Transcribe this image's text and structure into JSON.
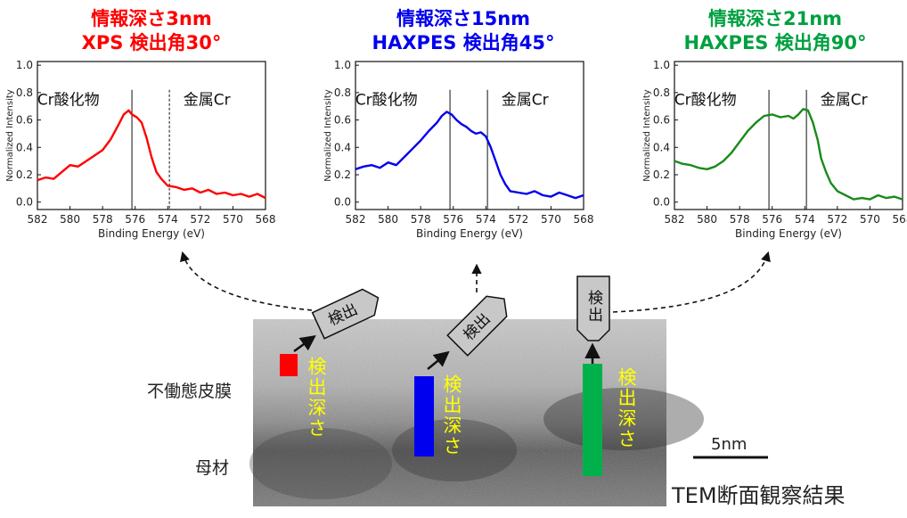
{
  "panels": [
    {
      "depth_line": "情報深さ3nm",
      "method_line": "XPS 検出角30°",
      "color": "#ff0000"
    },
    {
      "depth_line": "情報深さ15nm",
      "method_line": "HAXPES 検出角45°",
      "color": "#0000ee"
    },
    {
      "depth_line": "情報深さ21nm",
      "method_line": "HAXPES 検出角90°",
      "color": "#00a040"
    }
  ],
  "chart_data": [
    {
      "type": "line",
      "xlabel": "Binding Energy (eV)",
      "ylabel": "Normalized Intensity",
      "xlim": [
        582,
        568
      ],
      "ylim": [
        0,
        1.0
      ],
      "xticks": [
        "582",
        "580",
        "578",
        "576",
        "574",
        "572",
        "570",
        "568"
      ],
      "yticks": [
        "0.0",
        "0.2",
        "0.4",
        "0.6",
        "0.8",
        "1.0"
      ],
      "annotations": [
        "Cr酸化物",
        "金属Cr"
      ],
      "markers": [
        {
          "x": 576.2,
          "style": "solid"
        },
        {
          "x": 573.9,
          "style": "dashed"
        }
      ],
      "series": [
        {
          "color": "#ff0000",
          "x": [
            582,
            581.5,
            581,
            580.5,
            580,
            579.5,
            579,
            578.5,
            578,
            577.5,
            577,
            576.7,
            576.4,
            576.2,
            575.9,
            575.6,
            575.3,
            575,
            574.7,
            574.4,
            574,
            573.5,
            573,
            572.5,
            572,
            571.5,
            571,
            570.5,
            570,
            569.5,
            569,
            568.5,
            568
          ],
          "y": [
            0.16,
            0.18,
            0.17,
            0.22,
            0.27,
            0.26,
            0.3,
            0.34,
            0.38,
            0.46,
            0.57,
            0.64,
            0.67,
            0.64,
            0.62,
            0.58,
            0.47,
            0.33,
            0.22,
            0.17,
            0.12,
            0.11,
            0.09,
            0.1,
            0.07,
            0.09,
            0.06,
            0.07,
            0.05,
            0.06,
            0.04,
            0.06,
            0.03
          ]
        }
      ]
    },
    {
      "type": "line",
      "xlabel": "Binding Energy (eV)",
      "ylabel": "Normalized Intensity",
      "xlim": [
        582,
        568
      ],
      "ylim": [
        0,
        1.0
      ],
      "xticks": [
        "582",
        "580",
        "578",
        "576",
        "574",
        "572",
        "570",
        "568"
      ],
      "yticks": [
        "0.0",
        "0.2",
        "0.4",
        "0.6",
        "0.8",
        "1.0"
      ],
      "annotations": [
        "Cr酸化物",
        "金属Cr"
      ],
      "markers": [
        {
          "x": 576.2,
          "style": "solid"
        },
        {
          "x": 573.9,
          "style": "solid"
        }
      ],
      "series": [
        {
          "color": "#0000ee",
          "x": [
            582,
            581.5,
            581,
            580.5,
            580,
            579.5,
            579,
            578.5,
            578,
            577.5,
            577,
            576.7,
            576.4,
            576.1,
            575.8,
            575.5,
            575.2,
            574.9,
            574.6,
            574.3,
            574.0,
            573.7,
            573.4,
            573.1,
            572.8,
            572.5,
            572,
            571.5,
            571,
            570.5,
            570,
            569.5,
            569,
            568.5,
            568
          ],
          "y": [
            0.24,
            0.26,
            0.27,
            0.25,
            0.29,
            0.27,
            0.33,
            0.39,
            0.45,
            0.52,
            0.58,
            0.63,
            0.66,
            0.64,
            0.6,
            0.57,
            0.55,
            0.52,
            0.5,
            0.51,
            0.48,
            0.4,
            0.3,
            0.2,
            0.13,
            0.08,
            0.07,
            0.06,
            0.08,
            0.05,
            0.04,
            0.07,
            0.05,
            0.03,
            0.05
          ]
        }
      ]
    },
    {
      "type": "line",
      "xlabel": "Binding Energy (eV)",
      "ylabel": "Normalized Intensity",
      "xlim": [
        582,
        568
      ],
      "ylim": [
        0,
        1.0
      ],
      "xticks": [
        "582",
        "580",
        "578",
        "576",
        "574",
        "572",
        "570",
        "568"
      ],
      "yticks": [
        "0.0",
        "0.2",
        "0.4",
        "0.6",
        "0.8",
        "1.0"
      ],
      "annotations": [
        "Cr酸化物",
        "金属Cr"
      ],
      "markers": [
        {
          "x": 576.2,
          "style": "solid"
        },
        {
          "x": 573.9,
          "style": "solid"
        }
      ],
      "series": [
        {
          "color": "#1a8a1a",
          "x": [
            582,
            581.5,
            581,
            580.5,
            580,
            579.5,
            579,
            578.5,
            578,
            577.5,
            577,
            576.5,
            576,
            575.5,
            575,
            574.7,
            574.4,
            574.1,
            573.8,
            573.5,
            573.2,
            573,
            572.7,
            572.4,
            572,
            571.5,
            571,
            570.5,
            570,
            569.5,
            569,
            568.5,
            568
          ],
          "y": [
            0.3,
            0.28,
            0.27,
            0.25,
            0.24,
            0.26,
            0.3,
            0.36,
            0.44,
            0.52,
            0.58,
            0.63,
            0.64,
            0.62,
            0.63,
            0.61,
            0.64,
            0.68,
            0.67,
            0.58,
            0.45,
            0.32,
            0.22,
            0.14,
            0.08,
            0.05,
            0.02,
            0.03,
            0.02,
            0.05,
            0.03,
            0.04,
            0.02
          ]
        }
      ]
    }
  ],
  "detector_label": "検出",
  "depth_label": "検出深さ",
  "layer_labels": {
    "passive_film": "不働態皮膜",
    "base_metal": "母材"
  },
  "scale_bar": "5nm",
  "tem_caption": "TEM断面観察結果",
  "depth_colors": [
    "#ff0000",
    "#0000ee",
    "#00b04a"
  ]
}
